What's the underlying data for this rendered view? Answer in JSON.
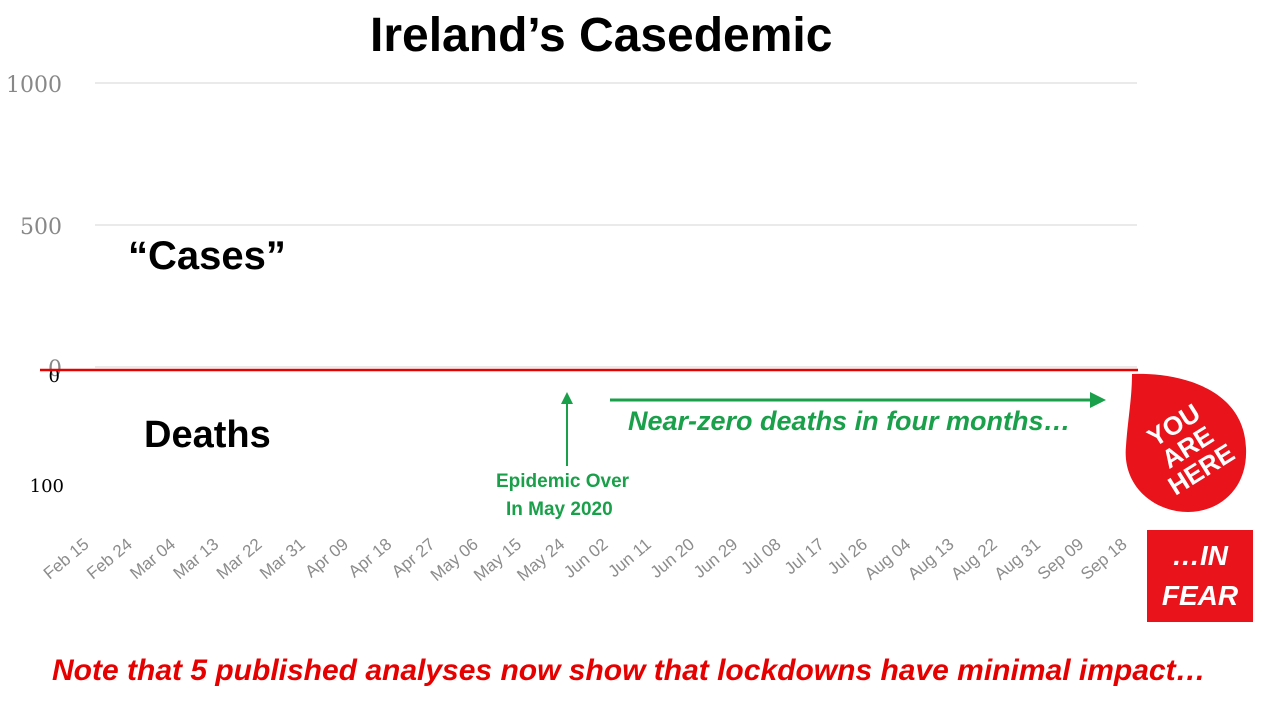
{
  "title": "Ireland’s Casedemic",
  "labels": {
    "cases": "“Cases”",
    "deaths": "Deaths"
  },
  "annotations": {
    "epidemic_over_line1": "Epidemic Over",
    "epidemic_over_line2": "In May 2020",
    "near_zero": "Near-zero deaths in four months…"
  },
  "footnote": "Note that 5 published analyses now show that lockdowns have minimal impact…",
  "badge": {
    "line1": "YOU",
    "line2": "ARE",
    "line3": "HERE"
  },
  "fear_box": {
    "line1": "…IN",
    "line2": "FEAR"
  },
  "colors": {
    "cases_bar": "#a6a6a6",
    "deaths_bar": "#000000",
    "zero_line": "#e60000",
    "green": "#1aa04a",
    "red": "#e8131b",
    "grid": "#e4e4e4"
  },
  "chart_data": {
    "type": "bar",
    "title": "Ireland’s Casedemic",
    "xlabel": "",
    "ylabel": "",
    "x_tick_labels": [
      "Feb 15",
      "Feb 24",
      "Mar 04",
      "Mar 13",
      "Mar 22",
      "Mar 31",
      "Apr 09",
      "Apr 18",
      "Apr 27",
      "May 06",
      "May 15",
      "May 24",
      "Jun 02",
      "Jun 11",
      "Jun 20",
      "Jun 29",
      "Jul 08",
      "Jul 17",
      "Jul 26",
      "Aug 04",
      "Aug 13",
      "Aug 22",
      "Aug 31",
      "Sep 09",
      "Sep 18"
    ],
    "cases_axis": {
      "ticks": [
        "0",
        "500",
        "1000"
      ],
      "tick_values": [
        0,
        500,
        1000
      ],
      "ylim": [
        0,
        1200
      ]
    },
    "deaths_axis": {
      "ticks": [
        "0",
        "100"
      ],
      "tick_values": [
        0,
        100
      ],
      "ylim": [
        0,
        130
      ]
    },
    "start_date": "Feb 15",
    "series": [
      {
        "name": "“Cases”",
        "values": [
          0,
          0,
          0,
          0,
          0,
          0,
          0,
          0,
          0,
          0,
          0,
          0,
          0,
          0,
          0,
          0,
          0,
          0,
          0,
          0,
          0,
          0,
          0,
          0,
          0,
          0,
          0,
          0,
          0,
          0,
          0,
          0,
          0,
          0,
          0,
          0,
          0,
          0,
          0,
          0,
          0,
          0,
          0,
          0,
          0,
          0,
          0,
          0,
          0,
          0,
          0,
          0,
          0,
          0,
          0,
          0,
          0,
          0,
          0,
          0,
          0,
          0,
          0,
          0,
          0,
          0,
          0,
          0,
          0,
          0,
          0,
          0,
          0,
          0,
          0,
          0,
          0,
          0,
          0,
          0,
          0,
          0,
          0,
          0,
          0,
          0,
          0,
          0,
          0,
          0,
          0,
          0,
          0,
          0,
          0,
          0,
          0,
          0,
          0,
          0,
          0,
          0,
          0,
          0,
          0,
          0,
          0,
          0,
          0,
          0,
          0,
          0,
          0,
          0,
          0,
          0,
          0,
          0,
          0,
          0,
          0,
          0,
          0,
          0,
          0,
          0,
          0,
          0,
          0,
          0,
          0,
          0,
          0,
          0,
          0,
          0,
          0,
          0,
          0,
          0,
          0,
          0,
          0,
          0,
          0,
          0,
          0,
          0,
          0,
          0,
          0,
          0,
          0,
          0,
          0,
          0,
          0,
          0,
          0,
          0,
          0,
          0,
          0,
          0,
          0,
          0,
          0,
          0,
          0,
          0,
          0,
          0,
          0,
          0,
          0,
          0,
          0,
          0,
          0,
          0,
          0,
          0,
          0,
          0,
          0,
          0,
          0,
          0,
          0,
          0,
          0,
          0,
          0,
          0,
          0,
          0,
          0,
          0,
          0,
          0,
          0,
          0,
          0,
          0,
          0,
          0,
          0,
          0,
          0,
          0,
          0,
          0,
          0,
          0,
          0,
          0,
          0,
          0,
          0,
          0,
          0,
          0,
          0,
          0,
          0
        ]
      },
      {
        "name": "Deaths",
        "values": [
          0,
          0,
          0,
          0,
          0,
          0,
          0,
          0,
          0,
          0,
          0,
          0,
          0,
          0,
          0,
          0,
          0,
          0,
          0,
          0,
          0,
          0,
          0,
          0,
          0,
          0,
          0,
          0,
          0,
          0,
          0,
          0,
          0,
          0,
          0,
          0,
          0,
          0,
          0,
          0,
          0,
          0,
          0,
          0,
          0,
          0,
          0,
          0,
          0,
          0,
          0,
          0,
          0,
          0,
          0,
          0,
          0,
          0,
          0,
          0,
          0,
          0,
          0,
          0,
          0,
          0,
          0,
          0,
          0,
          0,
          0,
          0,
          0,
          0,
          0,
          0,
          0,
          0,
          0,
          0,
          0,
          0,
          0,
          0,
          0,
          0,
          0,
          0,
          0,
          0,
          0,
          0,
          0,
          0,
          0,
          0,
          0,
          0,
          0,
          0,
          0,
          0,
          0,
          0,
          0,
          0,
          0,
          0,
          0,
          0,
          0,
          0,
          0,
          0,
          0,
          0,
          0,
          0,
          0,
          0,
          0,
          0,
          0,
          0,
          0,
          0,
          0,
          0,
          0,
          0,
          0,
          0,
          0,
          0,
          0,
          0,
          0,
          0,
          0,
          0,
          0,
          0,
          0,
          0,
          0,
          0,
          0,
          0,
          0,
          0,
          0,
          0,
          0,
          0,
          0,
          0,
          0,
          0,
          0,
          0,
          0,
          0,
          0,
          0,
          0,
          0,
          0,
          0,
          0,
          0,
          0,
          0,
          0,
          0,
          0,
          0,
          0,
          0,
          0,
          0,
          0,
          0,
          0,
          0,
          0,
          0,
          0,
          0,
          0,
          0,
          0,
          0,
          0,
          0,
          0,
          0,
          0,
          0,
          0,
          0,
          0,
          0,
          0,
          0,
          0,
          0,
          0,
          0,
          0,
          0,
          0,
          0,
          0,
          0,
          0,
          0,
          0,
          0,
          0,
          0,
          0,
          0,
          0,
          0,
          0
        ]
      }
    ]
  }
}
